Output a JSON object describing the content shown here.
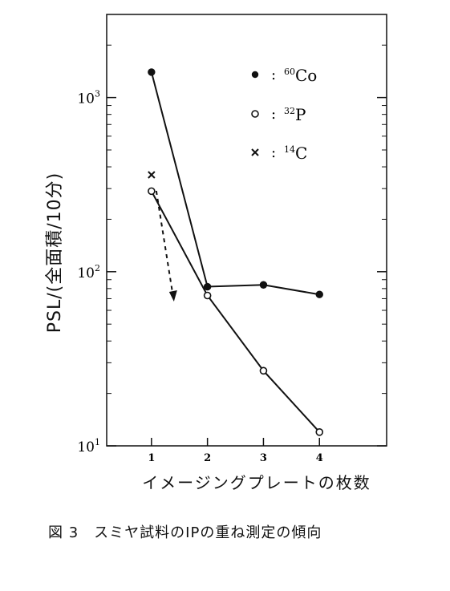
{
  "chart_data": {
    "type": "line",
    "y_scale": "log",
    "ylim": [
      10,
      3000
    ],
    "xlim": [
      0.2,
      5.2
    ],
    "x_ticks": [
      1,
      2,
      3,
      4
    ],
    "y_ticks": [
      {
        "value": 10,
        "base": "10",
        "exp": "1"
      },
      {
        "value": 100,
        "base": "10",
        "exp": "2"
      },
      {
        "value": 1000,
        "base": "10",
        "exp": "3"
      }
    ],
    "ylabel": "PSL/(全面積/10分)",
    "xlabel": "イメージングプレートの枚数",
    "grid": false,
    "legend_position": "top-right",
    "series": [
      {
        "name": "60Co",
        "name_sup": "60",
        "name_base": "Co",
        "marker": "filled-circle",
        "x": [
          1,
          2,
          3,
          4
        ],
        "values": [
          1400,
          82,
          84,
          74
        ]
      },
      {
        "name": "32P",
        "name_sup": "32",
        "name_base": "P",
        "marker": "open-circle",
        "x": [
          1,
          2,
          3,
          4
        ],
        "values": [
          290,
          73,
          27,
          12
        ]
      },
      {
        "name": "14C",
        "name_sup": "14",
        "name_base": "C",
        "marker": "x",
        "x": [
          1
        ],
        "values": [
          360
        ],
        "trend": "dashed-arrow-down"
      }
    ]
  },
  "caption": "図 3　スミヤ試料のIPの重ね測定の傾向"
}
